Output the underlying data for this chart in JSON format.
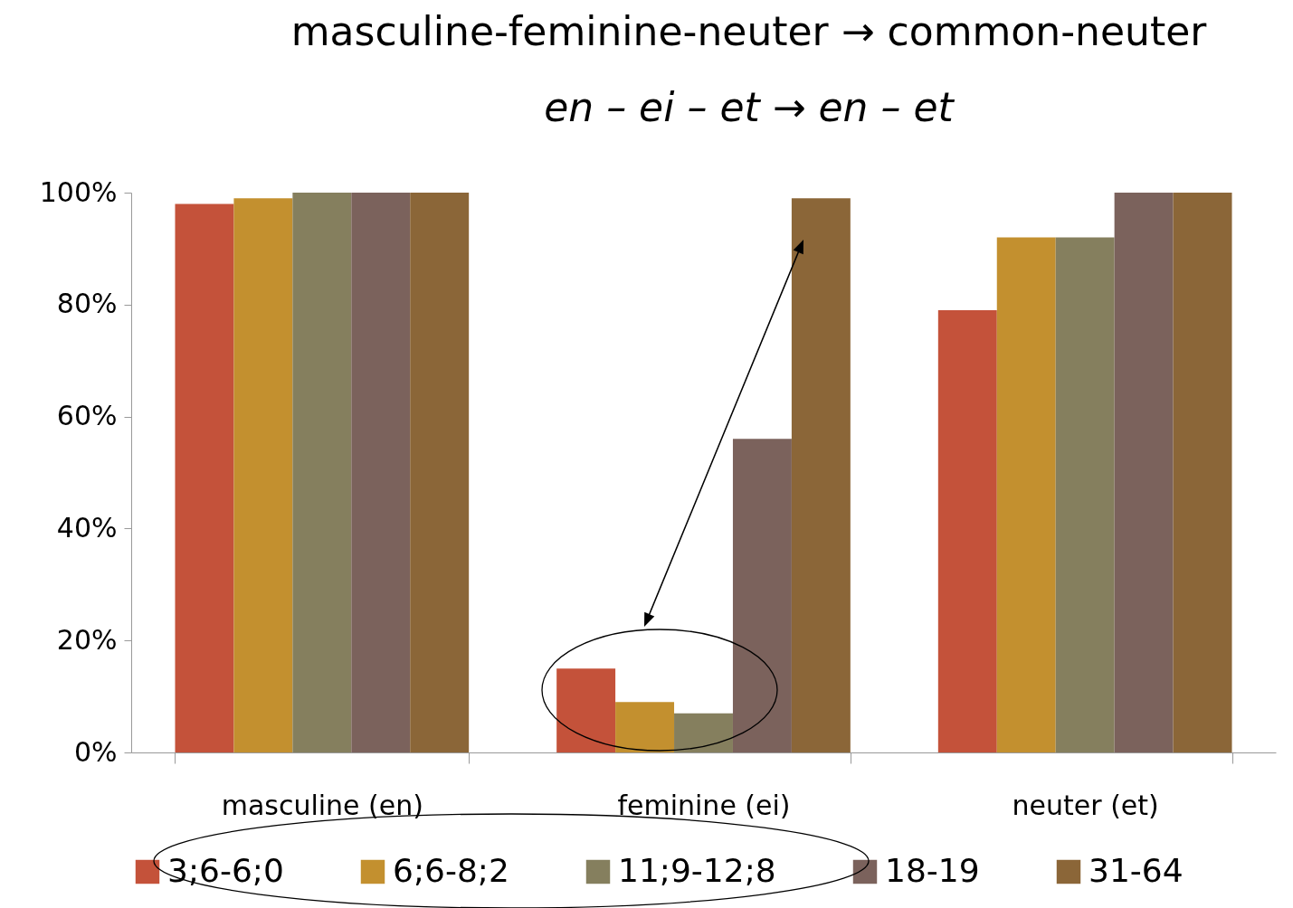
{
  "chart_data": {
    "type": "bar",
    "title": "masculine-feminine-neuter → common-neuter",
    "subtitle": "en – ei – et → en – et",
    "categories": [
      "masculine (en)",
      "feminine (ei)",
      "neuter (et)"
    ],
    "series": [
      {
        "name": "3;6-6;0",
        "color": "#c4523a",
        "values": [
          98,
          15,
          79
        ]
      },
      {
        "name": "6;6-8;2",
        "color": "#c3902f",
        "values": [
          99,
          9,
          92
        ]
      },
      {
        "name": "11;9-12;8",
        "color": "#857f5e",
        "values": [
          100,
          7,
          92
        ]
      },
      {
        "name": "18-19",
        "color": "#7b625c",
        "values": [
          100,
          56,
          100
        ]
      },
      {
        "name": "31-64",
        "color": "#8b6638",
        "values": [
          100,
          99,
          100
        ]
      }
    ],
    "ylim": [
      0,
      100
    ],
    "yticks": [
      {
        "value": 0,
        "label": "0%"
      },
      {
        "value": 20,
        "label": "20%"
      },
      {
        "value": 40,
        "label": "40%"
      },
      {
        "value": 60,
        "label": "60%"
      },
      {
        "value": 80,
        "label": "80%"
      },
      {
        "value": 100,
        "label": "100%"
      }
    ],
    "grid": false,
    "legend": "bottom"
  }
}
